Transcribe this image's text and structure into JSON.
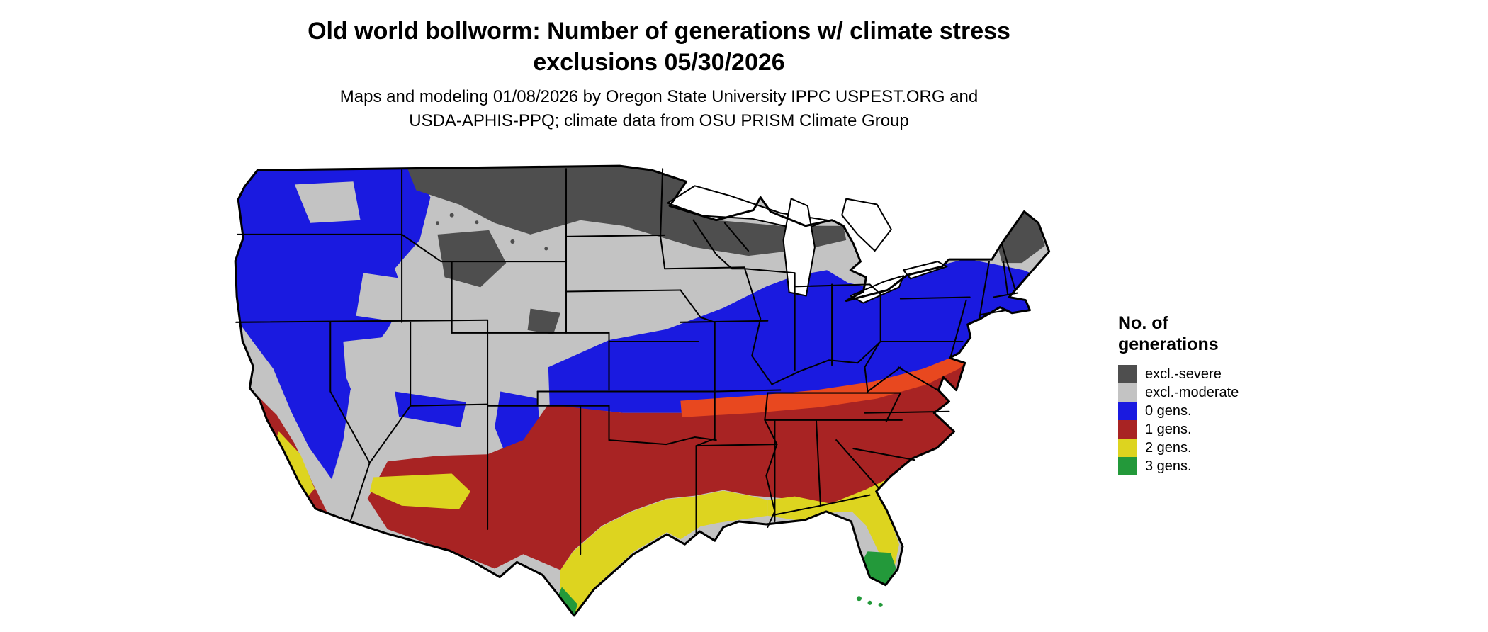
{
  "title": {
    "line1": "Old world bollworm: Number of generations w/ climate stress",
    "line2": "exclusions 05/30/2026"
  },
  "subtitle": {
    "line1": "Maps and modeling 01/08/2026 by Oregon State University IPPC USPEST.ORG and",
    "line2": "USDA-APHIS-PPQ; climate data from OSU PRISM Climate Group"
  },
  "legend": {
    "title_line1": "No. of",
    "title_line2": "generations",
    "items": [
      {
        "key": "sev",
        "label": "excl.-severe",
        "color": "#4e4e4e"
      },
      {
        "key": "mod",
        "label": "excl.-moderate",
        "color": "#c3c3c3"
      },
      {
        "key": "g0",
        "label": "0 gens.",
        "color": "#1a1ae0"
      },
      {
        "key": "g1",
        "label": "1 gens.",
        "color": "#a82323"
      },
      {
        "key": "g2",
        "label": "2 gens.",
        "color": "#ddd41f"
      },
      {
        "key": "g3",
        "label": "3 gens.",
        "color": "#23993a"
      }
    ]
  },
  "map": {
    "name": "Continental US map of modeled old world bollworm generations",
    "colors": {
      "sev": "#4e4e4e",
      "mod": "#c3c3c3",
      "g0": "#1a1ae0",
      "g1": "#a82323",
      "g1_hot": "#e8481f",
      "g2": "#ddd41f",
      "g3": "#23993a",
      "water": "#ffffff",
      "border": "#000000"
    }
  }
}
